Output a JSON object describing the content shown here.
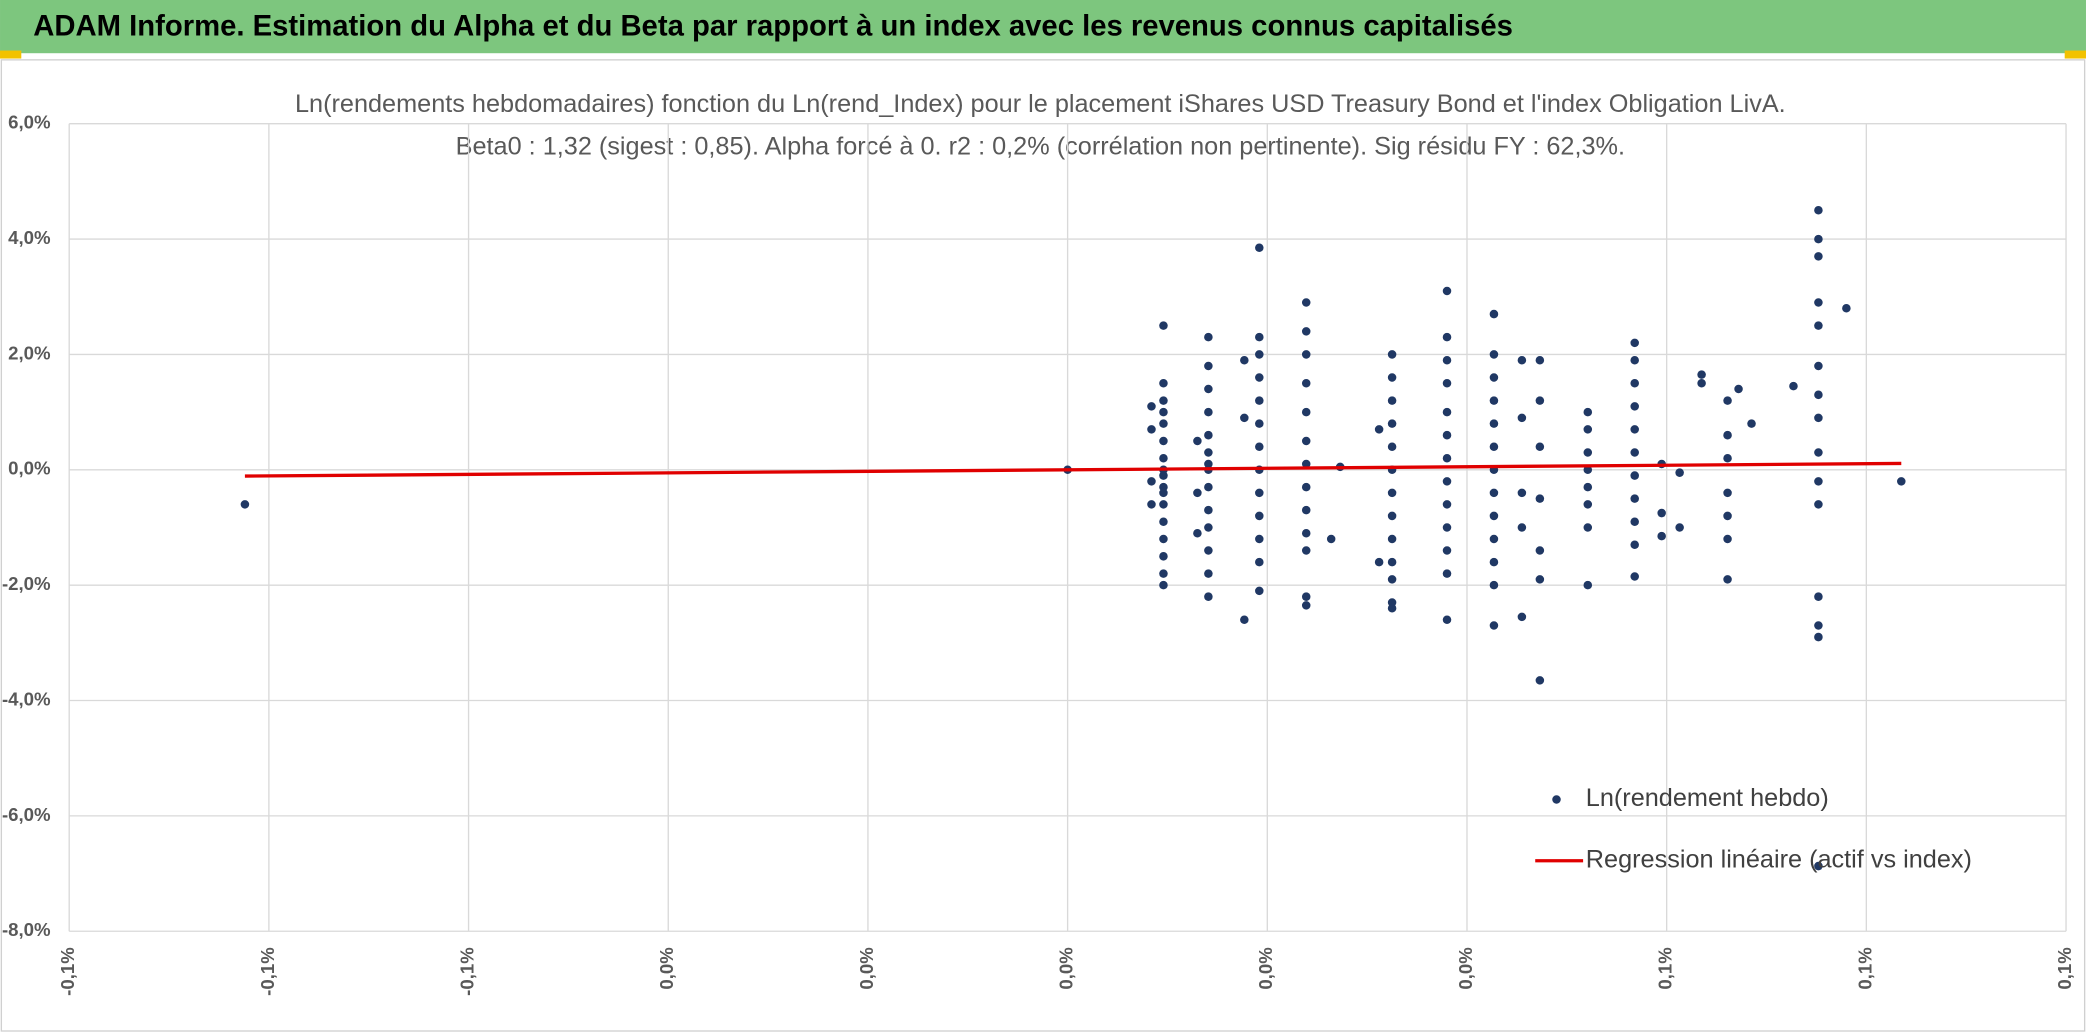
{
  "header": {
    "title": "ADAM Informe. Estimation du Alpha et du Beta par rapport à un index avec les revenus connus capitalisés"
  },
  "chart_data": {
    "type": "scatter",
    "title": "Ln(rendements hebdomadaires) fonction du Ln(rend_Index) pour le placement iShares USD Treasury Bond et l'index Obligation LivA.",
    "subtitle": "Beta0 : 1,32 (sigest : 0,85). Alpha forcé à 0. r2 : 0,2% (corrélation non pertinente). Sig résidu FY : 62,3%.",
    "xlim": [
      -0.1,
      0.1
    ],
    "xticks": [
      {
        "value": -0.1,
        "label": "-0,1%"
      },
      {
        "value": -0.08,
        "label": "-0,1%"
      },
      {
        "value": -0.06,
        "label": "-0,1%"
      },
      {
        "value": -0.04,
        "label": "0,0%"
      },
      {
        "value": -0.02,
        "label": "0,0%"
      },
      {
        "value": 0,
        "label": "0,0%"
      },
      {
        "value": 0.02,
        "label": "0,0%"
      },
      {
        "value": 0.04,
        "label": "0,0%"
      },
      {
        "value": 0.06,
        "label": "0,1%"
      },
      {
        "value": 0.08,
        "label": "0,1%"
      },
      {
        "value": 0.1,
        "label": "0,1%"
      }
    ],
    "ylim": [
      -8,
      6
    ],
    "yticks": [
      {
        "value": -8,
        "label": "-8,0%"
      },
      {
        "value": -6,
        "label": "-6,0%"
      },
      {
        "value": -4,
        "label": "-4,0%"
      },
      {
        "value": -2,
        "label": "-2,0%"
      },
      {
        "value": 0,
        "label": "0,0%"
      },
      {
        "value": 2,
        "label": "2,0%"
      },
      {
        "value": 4,
        "label": "4,0%"
      },
      {
        "value": 6,
        "label": "6,0%"
      }
    ],
    "grid": true,
    "legend": "lower right",
    "series": [
      {
        "name": "Ln(rendement hebdo)",
        "color": "#203864",
        "style": "markers",
        "x": [
          0.0096,
          0.0096,
          0.0096,
          0.0096,
          0.0096,
          0.0096,
          0.0096,
          0.0096,
          0.0096,
          0.0096,
          0.0096,
          0.0096,
          0.0096,
          0.0096,
          0.0096,
          0.0096,
          0.0096,
          0.0084,
          0.0084,
          0.0084,
          0.0084,
          0.0141,
          0.0141,
          0.0141,
          0.0141,
          0.0141,
          0.0141,
          0.0141,
          0.0141,
          0.0141,
          0.0141,
          0.0141,
          0.0141,
          0.0141,
          0.0141,
          0.013,
          0.013,
          0.013,
          0.0192,
          0.0192,
          0.0192,
          0.0192,
          0.0192,
          0.0192,
          0.0192,
          0.0192,
          0.0192,
          0.0192,
          0.0192,
          0.0192,
          0.0192,
          0.0177,
          0.0177,
          0.0177,
          0.0239,
          0.0239,
          0.0239,
          0.0239,
          0.0239,
          0.0239,
          0.0239,
          0.0239,
          0.0239,
          0.0239,
          0.0239,
          0.0239,
          0.0239,
          0.0273,
          0.0264,
          0.0325,
          0.0325,
          0.0325,
          0.0325,
          0.0325,
          0.0325,
          0.0325,
          0.0325,
          0.0325,
          0.0325,
          0.0325,
          0.0325,
          0.0325,
          0.0312,
          0.0312,
          0.038,
          0.038,
          0.038,
          0.038,
          0.038,
          0.038,
          0.038,
          0.038,
          0.038,
          0.038,
          0.038,
          0.038,
          0.038,
          0.0427,
          0.0427,
          0.0427,
          0.0427,
          0.0427,
          0.0427,
          0.0427,
          0.0427,
          0.0427,
          0.0427,
          0.0427,
          0.0427,
          0.0427,
          0.0455,
          0.0455,
          0.0455,
          0.0455,
          0.0455,
          0.0473,
          0.0473,
          0.0473,
          0.0473,
          0.0473,
          0.0473,
          0.0473,
          0.0521,
          0.0521,
          0.0521,
          0.0521,
          0.0521,
          0.0521,
          0.0521,
          0.0521,
          0.0568,
          0.0568,
          0.0568,
          0.0568,
          0.0568,
          0.0568,
          0.0568,
          0.0568,
          0.0568,
          0.0568,
          0.0568,
          0.0595,
          0.0595,
          0.0595,
          0.0613,
          0.0613,
          0.0635,
          0.0635,
          0.0661,
          0.0661,
          0.0661,
          0.0661,
          0.0661,
          0.0661,
          0.0661,
          0.0672,
          0.0685,
          0.0727,
          0.0752,
          0.0752,
          0.0752,
          0.0752,
          0.0752,
          0.0752,
          0.0752,
          0.0752,
          0.0752,
          0.0752,
          0.0752,
          0.0752,
          0.0752,
          0.0752,
          -0.0824,
          0,
          0.0835,
          0.078,
          0.0752
        ],
        "values": [
          2.5,
          1.5,
          1.2,
          1.0,
          0.8,
          0.5,
          0.2,
          -0.1,
          -0.3,
          -0.6,
          -0.9,
          -1.2,
          -1.5,
          -1.8,
          -2.0,
          0.0,
          -0.4,
          1.1,
          0.7,
          -0.2,
          -0.6,
          2.3,
          1.8,
          1.4,
          1.0,
          0.6,
          0.3,
          0.0,
          -0.3,
          -0.7,
          -1.0,
          -1.4,
          -1.8,
          -2.2,
          0.1,
          0.5,
          -1.1,
          -0.4,
          3.85,
          2.3,
          2.0,
          1.6,
          1.2,
          0.8,
          0.4,
          0.0,
          -0.4,
          -0.8,
          -1.2,
          -1.6,
          -2.1,
          1.9,
          -2.6,
          0.9,
          2.9,
          2.4,
          2.0,
          1.5,
          1.0,
          0.5,
          0.1,
          -0.3,
          -0.7,
          -1.1,
          -1.4,
          -2.2,
          -2.35,
          0.05,
          -1.2,
          2.0,
          1.6,
          1.2,
          0.8,
          0.4,
          0.0,
          -0.4,
          -0.8,
          -1.2,
          -1.6,
          -1.9,
          -2.3,
          -2.4,
          0.7,
          -1.6,
          3.1,
          2.3,
          1.9,
          1.5,
          1.0,
          0.6,
          0.2,
          -0.2,
          -0.6,
          -1.0,
          -1.4,
          -1.8,
          -2.6,
          2.7,
          2.0,
          1.6,
          1.2,
          0.8,
          0.4,
          0.0,
          -0.4,
          -0.8,
          -1.2,
          -1.6,
          -2.0,
          -2.7,
          1.9,
          0.9,
          -0.4,
          -1.0,
          -2.55,
          1.9,
          1.2,
          0.4,
          -0.5,
          -1.4,
          -1.9,
          -3.65,
          1.0,
          0.7,
          0.3,
          0.0,
          -0.3,
          -0.6,
          -1.0,
          -2.0,
          2.2,
          1.9,
          1.5,
          1.1,
          0.7,
          0.3,
          -0.1,
          -0.5,
          -0.9,
          -1.3,
          -1.85,
          0.1,
          -0.75,
          -1.15,
          -0.05,
          -1.0,
          1.65,
          1.5,
          1.2,
          0.6,
          0.2,
          -0.4,
          -0.8,
          -1.2,
          -1.9,
          1.4,
          0.8,
          1.45,
          4.5,
          4.0,
          3.7,
          2.9,
          2.5,
          1.8,
          1.3,
          0.9,
          0.3,
          -0.2,
          -0.6,
          -2.2,
          -2.7,
          -2.9,
          -0.6,
          0,
          -0.2,
          2.8,
          -6.87
        ]
      },
      {
        "name": "Regression linéaire (actif vs index)",
        "color": "#e00000",
        "style": "line",
        "x": [
          -0.0824,
          0.0835
        ],
        "values": [
          -0.109,
          0.11
        ]
      }
    ]
  }
}
